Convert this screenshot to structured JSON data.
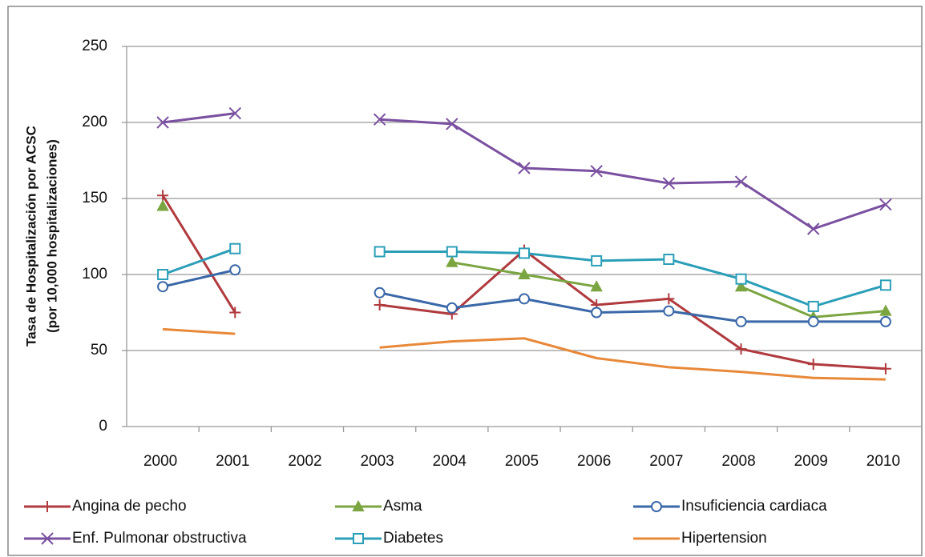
{
  "chart_data": {
    "type": "line",
    "ylabel": "Tasa de Hospitalización  por ACSC",
    "ylabel_sub": "(por 10,000 hospitalizaciones)",
    "categories": [
      "2000",
      "2001",
      "2002",
      "2003",
      "2004",
      "2005",
      "2006",
      "2007",
      "2008",
      "2009",
      "2010"
    ],
    "ylim": [
      0,
      250
    ],
    "yticks": [
      0,
      50,
      100,
      150,
      200,
      250
    ],
    "grid": true,
    "legend": "bottom",
    "series": [
      {
        "name": "Angina de pecho",
        "color": "#b03a3e",
        "marker": "plus",
        "values": [
          152,
          75,
          null,
          80,
          74,
          116,
          80,
          84,
          51,
          41,
          38
        ]
      },
      {
        "name": "Asma",
        "color": "#7ba541",
        "marker": "triangle",
        "values": [
          145,
          null,
          null,
          null,
          108,
          100,
          92,
          null,
          92,
          72,
          76
        ]
      },
      {
        "name": "Insuficiencia cardiaca",
        "color": "#3a68a8",
        "marker": "circle",
        "values": [
          92,
          103,
          null,
          88,
          78,
          84,
          75,
          76,
          69,
          69,
          69
        ]
      },
      {
        "name": "Enf. Pulmonar obstructiva",
        "color": "#7a50a0",
        "marker": "cross",
        "values": [
          200,
          206,
          null,
          202,
          199,
          170,
          168,
          160,
          161,
          130,
          146
        ]
      },
      {
        "name": "Diabetes",
        "color": "#2c9fb8",
        "marker": "square",
        "values": [
          100,
          117,
          null,
          115,
          115,
          114,
          109,
          110,
          97,
          79,
          93
        ]
      },
      {
        "name": "Hipertension",
        "color": "#e8893a",
        "marker": "none",
        "values": [
          64,
          61,
          null,
          52,
          56,
          58,
          45,
          39,
          36,
          32,
          31
        ]
      }
    ]
  }
}
